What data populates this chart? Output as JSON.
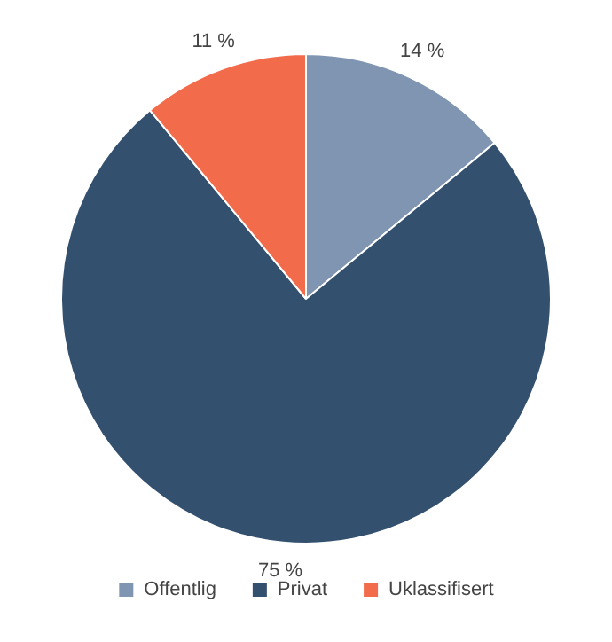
{
  "chart_data": {
    "type": "pie",
    "categories": [
      "Offentlig",
      "Privat",
      "Uklassifisert"
    ],
    "values": [
      14,
      75,
      11
    ],
    "value_labels": [
      "14 %",
      "75 %",
      "11 %"
    ],
    "colors": [
      "#7f95b1",
      "#34506f",
      "#f26b4a"
    ],
    "legend": "bottom"
  }
}
